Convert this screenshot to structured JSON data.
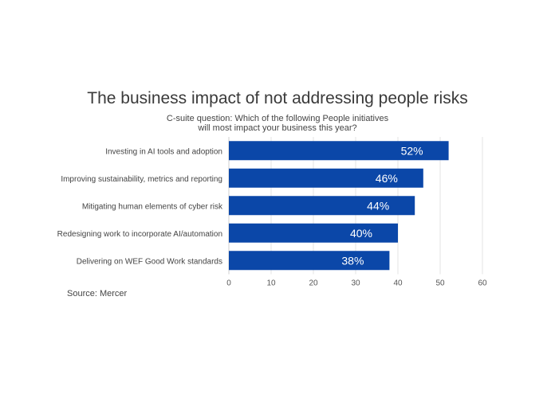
{
  "chart_data": {
    "type": "bar",
    "orientation": "horizontal",
    "title": "The business impact of not addressing people risks",
    "subtitle": [
      "C-suite question: Which of the following People initiatives",
      "will most impact your business this year?"
    ],
    "categories": [
      "Investing in AI tools and adoption",
      "Improving sustainability, metrics and reporting",
      "Mitigating human elements of cyber risk",
      "Redesigning work to incorporate AI/automation",
      "Delivering on WEF Good Work standards"
    ],
    "values": [
      52,
      46,
      44,
      40,
      38
    ],
    "data_labels": [
      "52%",
      "46%",
      "44%",
      "40%",
      "38%"
    ],
    "xlim": [
      0,
      60
    ],
    "xticks": [
      0,
      10,
      20,
      30,
      40,
      50,
      60
    ],
    "grid": "vertical",
    "bar_color": "#0b47a8",
    "label_color": "#ffffff"
  },
  "source": "Source: Mercer"
}
